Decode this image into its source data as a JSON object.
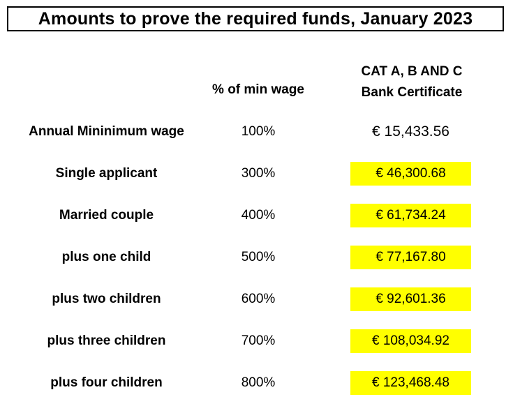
{
  "title": "Amounts to prove the required funds, January 2023",
  "headers": {
    "percent_col": "% of min wage",
    "category_line1": "CAT A, B AND C",
    "category_line2": "Bank Certificate"
  },
  "rows": [
    {
      "label": "Annual Mininimum wage",
      "percent": "100%",
      "amount": "€ 15,433.56"
    },
    {
      "label": "Single applicant",
      "percent": "300%",
      "amount": "€ 46,300.68"
    },
    {
      "label": "Married couple",
      "percent": "400%",
      "amount": "€ 61,734.24"
    },
    {
      "label": "plus one child",
      "percent": "500%",
      "amount": "€ 77,167.80"
    },
    {
      "label": "plus two children",
      "percent": "600%",
      "amount": "€ 92,601.36"
    },
    {
      "label": "plus three children",
      "percent": "700%",
      "amount": "€ 108,034.92"
    },
    {
      "label": "plus four children",
      "percent": "800%",
      "amount": "€ 123,468.48"
    }
  ],
  "colors": {
    "highlight": "#ffff00",
    "border": "#000000"
  }
}
